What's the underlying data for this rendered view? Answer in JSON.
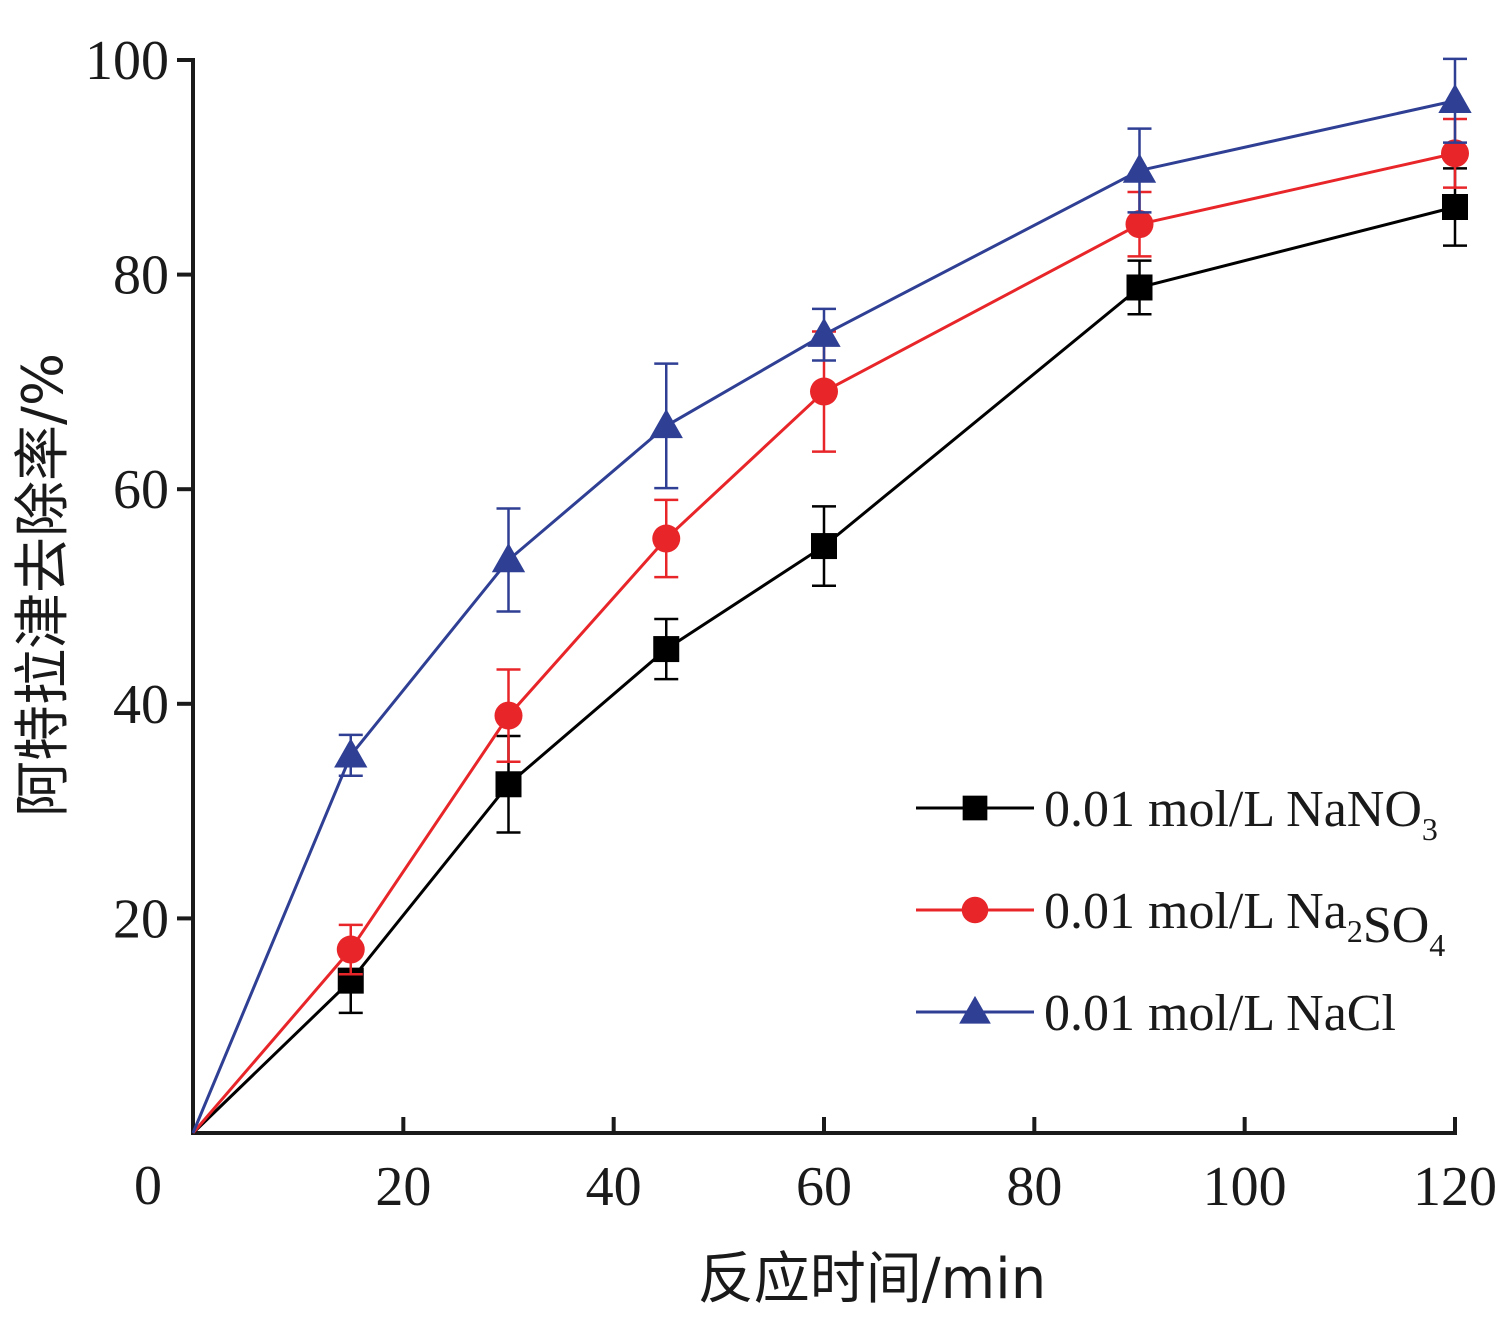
{
  "chart_data": {
    "type": "line",
    "title": "",
    "xlabel": "反应时间/min",
    "ylabel": "阿特拉津去除率/%",
    "xlim": [
      0,
      120
    ],
    "ylim": [
      0,
      100
    ],
    "x_ticks": [
      20,
      40,
      60,
      80,
      100,
      120
    ],
    "y_ticks": [
      20,
      40,
      60,
      80,
      100
    ],
    "origin_label": "0",
    "x_tick_labels": [
      "20",
      "40",
      "60",
      "80",
      "100",
      "120"
    ],
    "y_tick_labels": [
      "20",
      "40",
      "60",
      "80",
      "100"
    ],
    "x": [
      0,
      15,
      30,
      45,
      60,
      90,
      120
    ],
    "grid": false,
    "legend_position": "bottom-right",
    "series": [
      {
        "name": "0.01 mol/L NaNO3",
        "legend": {
          "prefix": "0.01 mol/L NaNO",
          "sub1": "3",
          "mid": "",
          "sub2": ""
        },
        "color": "#000000",
        "marker": "square",
        "values": [
          0,
          14.2,
          32.5,
          45.1,
          54.7,
          78.8,
          86.3
        ],
        "errors": [
          0,
          3.0,
          4.5,
          2.8,
          3.7,
          2.5,
          3.6
        ]
      },
      {
        "name": "0.01 mol/L Na2SO4",
        "legend": {
          "prefix": "0.01 mol/L Na",
          "sub1": "2",
          "mid": "SO",
          "sub2": "4"
        },
        "color": "#e8262a",
        "marker": "circle",
        "values": [
          0,
          17.1,
          38.9,
          55.4,
          69.1,
          84.7,
          91.3
        ],
        "errors": [
          0,
          2.3,
          4.3,
          3.6,
          5.6,
          3.0,
          3.2
        ]
      },
      {
        "name": "0.01 mol/L NaCl",
        "legend": {
          "prefix": "0.01 mol/L NaCl",
          "sub1": "",
          "mid": "",
          "sub2": ""
        },
        "color": "#2f3f94",
        "marker": "triangle",
        "values": [
          0,
          35.2,
          53.4,
          65.9,
          74.4,
          89.7,
          96.2
        ],
        "errors": [
          0,
          1.9,
          4.8,
          5.8,
          2.4,
          3.9,
          3.9
        ]
      }
    ]
  }
}
